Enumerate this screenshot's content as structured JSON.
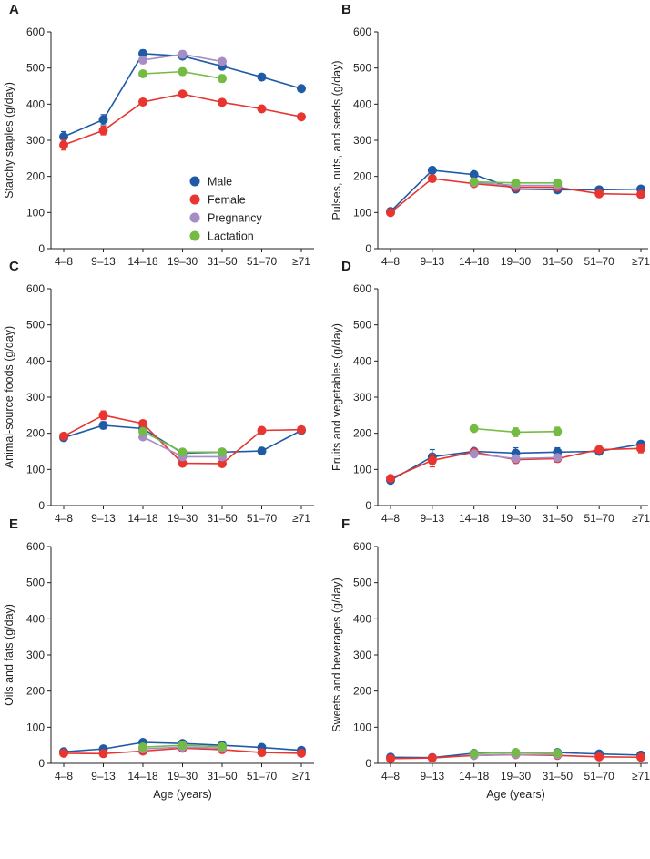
{
  "chart_data": [
    {
      "panel": "A",
      "type": "line",
      "ylabel": "Starchy staples (g/day)",
      "xlabel": "",
      "categories": [
        "4–8",
        "9–13",
        "14–18",
        "19–30",
        "31–50",
        "51–70",
        "≥71"
      ],
      "ylim": [
        0,
        600
      ],
      "yticks": [
        0,
        100,
        200,
        300,
        400,
        500,
        600
      ],
      "grid": false,
      "series": [
        {
          "name": "Male",
          "values": [
            310,
            357,
            540,
            533,
            505,
            475,
            443
          ],
          "errors": [
            14,
            14,
            10,
            8,
            6,
            6,
            6
          ]
        },
        {
          "name": "Female",
          "values": [
            287,
            327,
            406,
            428,
            405,
            387,
            365
          ],
          "errors": [
            14,
            12,
            6,
            6,
            6,
            6,
            6
          ]
        },
        {
          "name": "Pregnancy",
          "values": [
            null,
            null,
            522,
            538,
            518,
            null,
            null
          ],
          "errors": [
            0,
            0,
            10,
            10,
            8,
            0,
            0
          ]
        },
        {
          "name": "Lactation",
          "values": [
            null,
            null,
            484,
            490,
            471,
            null,
            null
          ],
          "errors": [
            0,
            0,
            8,
            10,
            10,
            0,
            0
          ]
        }
      ],
      "legend": {
        "placement": "bottom-right",
        "entries": [
          "Male",
          "Female",
          "Pregnancy",
          "Lactation"
        ]
      }
    },
    {
      "panel": "B",
      "type": "line",
      "ylabel": "Pulses, nuts, and seeds (g/day)",
      "xlabel": "",
      "categories": [
        "4–8",
        "9–13",
        "14–18",
        "19–30",
        "31–50",
        "51–70",
        "≥71"
      ],
      "ylim": [
        0,
        600
      ],
      "yticks": [
        0,
        100,
        200,
        300,
        400,
        500,
        600
      ],
      "grid": false,
      "series": [
        {
          "name": "Male",
          "values": [
            103,
            217,
            205,
            165,
            163,
            163,
            165
          ],
          "errors": [
            6,
            8,
            6,
            6,
            6,
            4,
            4
          ]
        },
        {
          "name": "Female",
          "values": [
            100,
            194,
            180,
            170,
            170,
            152,
            150
          ],
          "errors": [
            6,
            6,
            5,
            5,
            5,
            4,
            4
          ]
        },
        {
          "name": "Pregnancy",
          "values": [
            null,
            null,
            183,
            175,
            175,
            null,
            null
          ],
          "errors": [
            0,
            0,
            6,
            6,
            6,
            0,
            0
          ]
        },
        {
          "name": "Lactation",
          "values": [
            null,
            null,
            185,
            182,
            182,
            null,
            null
          ],
          "errors": [
            0,
            0,
            6,
            6,
            6,
            0,
            0
          ]
        }
      ]
    },
    {
      "panel": "C",
      "type": "line",
      "ylabel": "Animal-source foods (g/day)",
      "xlabel": "",
      "categories": [
        "4–8",
        "9–13",
        "14–18",
        "19–30",
        "31–50",
        "51–70",
        "≥71"
      ],
      "ylim": [
        0,
        600
      ],
      "yticks": [
        0,
        100,
        200,
        300,
        400,
        500,
        600
      ],
      "grid": false,
      "series": [
        {
          "name": "Male",
          "values": [
            188,
            222,
            213,
            145,
            148,
            151,
            208
          ],
          "errors": [
            6,
            10,
            6,
            5,
            5,
            4,
            5
          ]
        },
        {
          "name": "Female",
          "values": [
            192,
            250,
            227,
            117,
            116,
            208,
            210
          ],
          "errors": [
            6,
            12,
            6,
            5,
            5,
            5,
            5
          ]
        },
        {
          "name": "Pregnancy",
          "values": [
            null,
            null,
            190,
            135,
            135,
            null,
            null
          ],
          "errors": [
            0,
            0,
            6,
            6,
            6,
            0,
            0
          ]
        },
        {
          "name": "Lactation",
          "values": [
            null,
            null,
            205,
            148,
            148,
            null,
            null
          ],
          "errors": [
            0,
            0,
            6,
            6,
            6,
            0,
            0
          ]
        }
      ]
    },
    {
      "panel": "D",
      "type": "line",
      "ylabel": "Fruits and vegetables (g/day)",
      "xlabel": "",
      "categories": [
        "4–8",
        "9–13",
        "14–18",
        "19–30",
        "31–50",
        "51–70",
        "≥71"
      ],
      "ylim": [
        0,
        600
      ],
      "yticks": [
        0,
        100,
        200,
        300,
        400,
        500,
        600
      ],
      "grid": false,
      "series": [
        {
          "name": "Male",
          "values": [
            70,
            135,
            150,
            145,
            148,
            150,
            170
          ],
          "errors": [
            8,
            20,
            8,
            15,
            12,
            8,
            8
          ]
        },
        {
          "name": "Female",
          "values": [
            75,
            125,
            148,
            127,
            130,
            155,
            158
          ],
          "errors": [
            8,
            18,
            8,
            10,
            10,
            8,
            12
          ]
        },
        {
          "name": "Pregnancy",
          "values": [
            null,
            null,
            143,
            130,
            133,
            null,
            null
          ],
          "errors": [
            0,
            0,
            8,
            8,
            8,
            0,
            0
          ]
        },
        {
          "name": "Lactation",
          "values": [
            null,
            null,
            213,
            203,
            205,
            null,
            null
          ],
          "errors": [
            0,
            0,
            8,
            12,
            12,
            0,
            0
          ]
        }
      ]
    },
    {
      "panel": "E",
      "type": "line",
      "ylabel": "Oils and fats (g/day)",
      "xlabel": "Age (years)",
      "categories": [
        "4–8",
        "9–13",
        "14–18",
        "19–30",
        "31–50",
        "51–70",
        "≥71"
      ],
      "ylim": [
        0,
        600
      ],
      "yticks": [
        0,
        100,
        200,
        300,
        400,
        500,
        600
      ],
      "grid": false,
      "series": [
        {
          "name": "Male",
          "values": [
            32,
            40,
            58,
            55,
            50,
            44,
            36
          ],
          "errors": [
            3,
            3,
            3,
            3,
            3,
            3,
            3
          ]
        },
        {
          "name": "Female",
          "values": [
            28,
            27,
            34,
            42,
            38,
            30,
            28
          ],
          "errors": [
            3,
            3,
            3,
            3,
            3,
            3,
            3
          ]
        },
        {
          "name": "Pregnancy",
          "values": [
            null,
            null,
            40,
            45,
            42,
            null,
            null
          ],
          "errors": [
            0,
            0,
            3,
            3,
            3,
            0,
            0
          ]
        },
        {
          "name": "Lactation",
          "values": [
            null,
            null,
            45,
            50,
            46,
            null,
            null
          ],
          "errors": [
            0,
            0,
            3,
            3,
            3,
            0,
            0
          ]
        }
      ]
    },
    {
      "panel": "F",
      "type": "line",
      "ylabel": "Sweets and beverages (g/day)",
      "xlabel": "Age (years)",
      "categories": [
        "4–8",
        "9–13",
        "14–18",
        "19–30",
        "31–50",
        "51–70",
        "≥71"
      ],
      "ylim": [
        0,
        600
      ],
      "yticks": [
        0,
        100,
        200,
        300,
        400,
        500,
        600
      ],
      "grid": false,
      "series": [
        {
          "name": "Male",
          "values": [
            17,
            16,
            28,
            30,
            30,
            26,
            23
          ],
          "errors": [
            2,
            2,
            2,
            2,
            2,
            2,
            2
          ]
        },
        {
          "name": "Female",
          "values": [
            13,
            15,
            22,
            24,
            22,
            18,
            17
          ],
          "errors": [
            2,
            2,
            2,
            2,
            2,
            2,
            2
          ]
        },
        {
          "name": "Pregnancy",
          "values": [
            null,
            null,
            22,
            25,
            24,
            null,
            null
          ],
          "errors": [
            0,
            0,
            2,
            2,
            2,
            0,
            0
          ]
        },
        {
          "name": "Lactation",
          "values": [
            null,
            null,
            27,
            30,
            28,
            null,
            null
          ],
          "errors": [
            0,
            0,
            2,
            2,
            2,
            0,
            0
          ]
        }
      ]
    }
  ],
  "colors": {
    "Male": "#1f5aa6",
    "Female": "#e8352f",
    "Pregnancy": "#a58dc5",
    "Lactation": "#74bb44",
    "axis": "#231f20"
  }
}
